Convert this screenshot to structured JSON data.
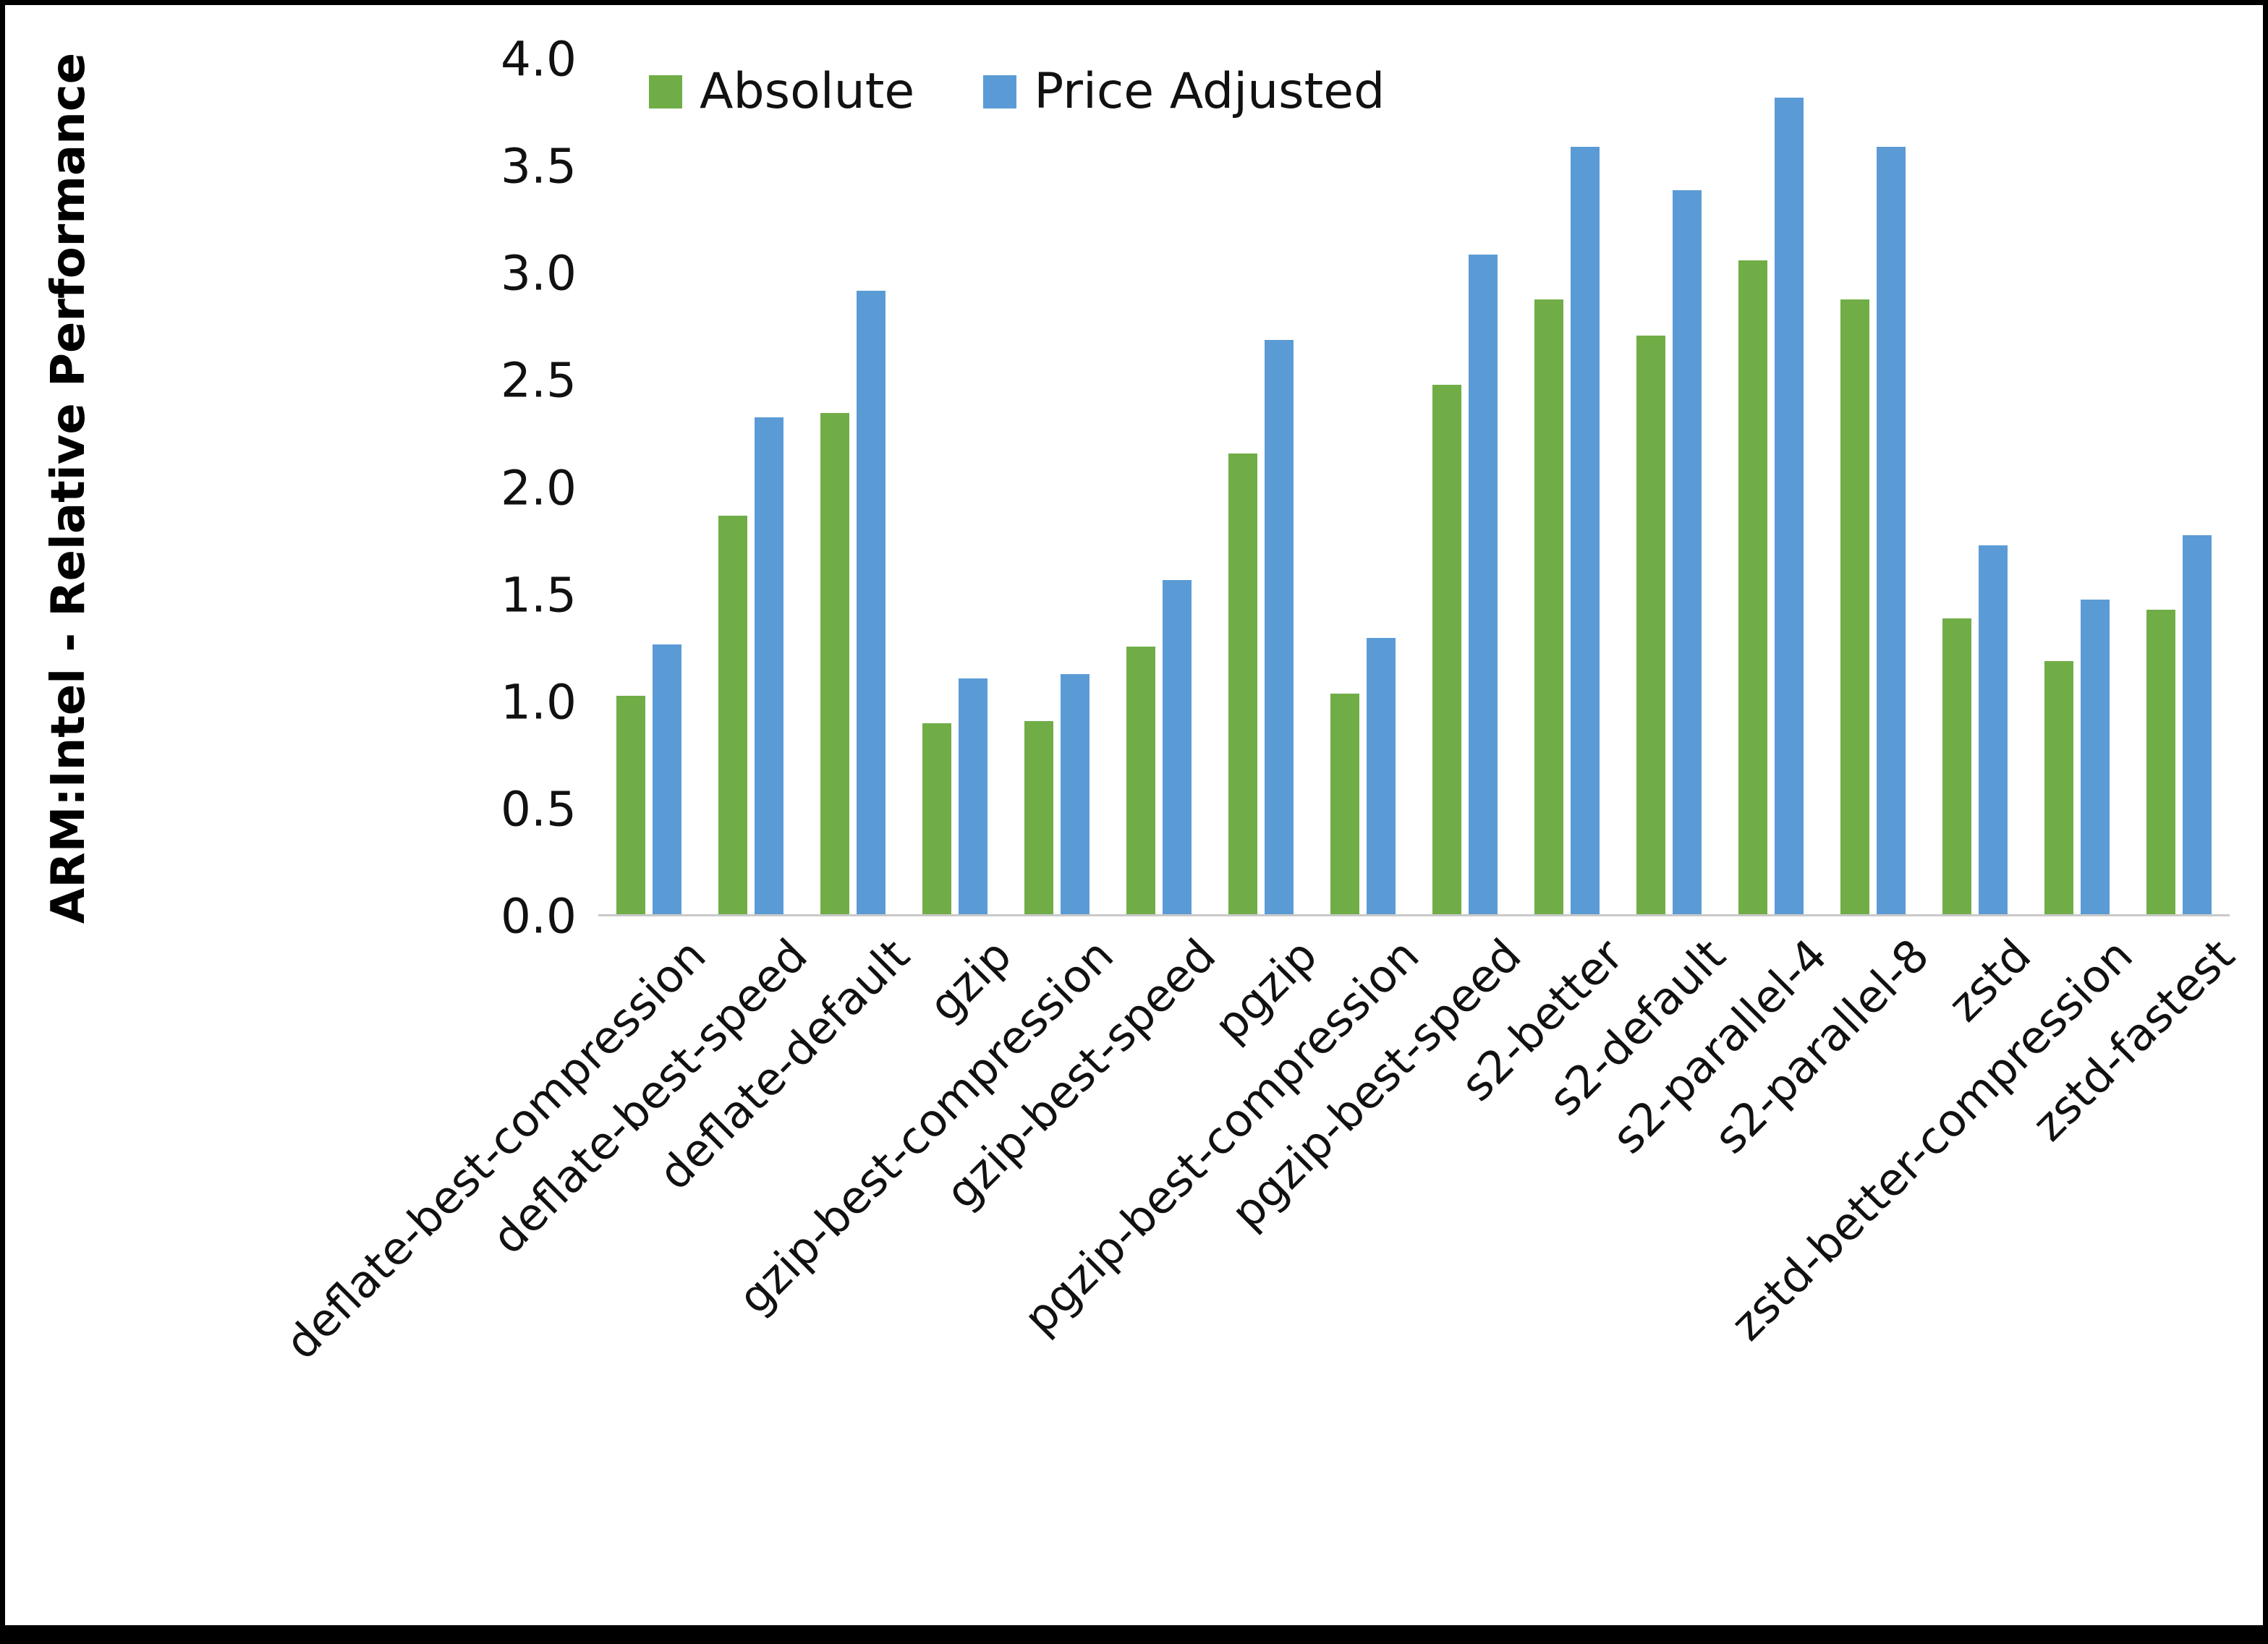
{
  "chart_data": {
    "type": "bar",
    "title": "",
    "xlabel": "",
    "ylabel": "ARM:Intel - Relative Performance",
    "ylim": [
      0,
      4.0
    ],
    "ytick_step": 0.5,
    "grid": false,
    "legend_position": "top",
    "categories": [
      "deflate-best-compression",
      "deflate-best-speed",
      "deflate-default",
      "gzip",
      "gzip-best-compression",
      "gzip-best-speed",
      "pgzip",
      "pgzip-best-compression",
      "pgzip-best-speed",
      "s2-better",
      "s2-default",
      "s2-parallel-4",
      "s2-parallel-8",
      "zstd",
      "zstd-better-compression",
      "zstd-fastest"
    ],
    "series": [
      {
        "name": "Absolute",
        "color": "#70AD47",
        "values": [
          1.02,
          1.86,
          2.34,
          0.89,
          0.9,
          1.25,
          2.15,
          1.03,
          2.47,
          2.87,
          2.7,
          3.05,
          2.87,
          1.38,
          1.18,
          1.42
        ]
      },
      {
        "name": "Price Adjusted",
        "color": "#5B9BD5",
        "values": [
          1.26,
          2.32,
          2.91,
          1.1,
          1.12,
          1.56,
          2.68,
          1.29,
          3.08,
          3.58,
          3.38,
          3.81,
          3.58,
          1.72,
          1.47,
          1.77
        ]
      }
    ]
  }
}
